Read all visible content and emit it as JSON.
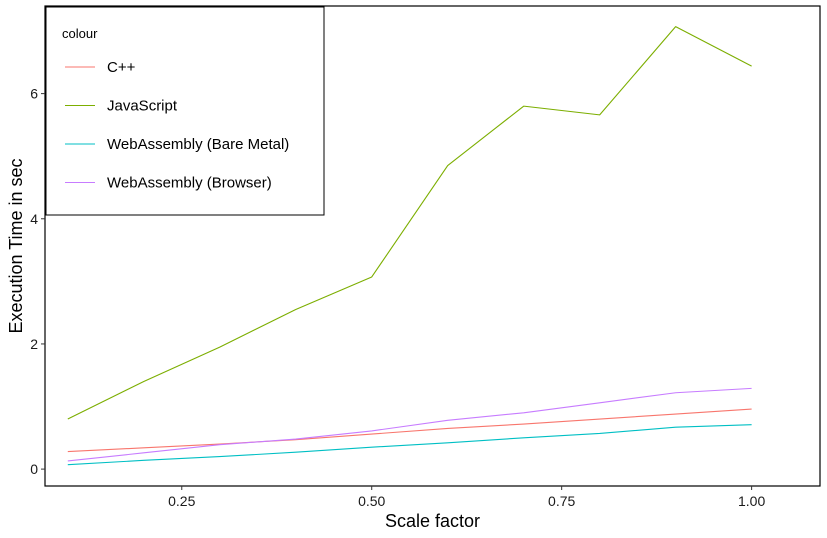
{
  "chart_data": {
    "type": "line",
    "xlabel": "Scale factor",
    "ylabel": "Execution Time in sec",
    "xlim": [
      0.07,
      1.09
    ],
    "ylim": [
      -0.27,
      7.4
    ],
    "xticks": [
      0.25,
      0.5,
      0.75,
      1.0
    ],
    "xtick_labels": [
      "0.25",
      "0.50",
      "0.75",
      "1.00"
    ],
    "yticks": [
      0,
      2,
      4,
      6
    ],
    "ytick_labels": [
      "0",
      "2",
      "4",
      "6"
    ],
    "grid": false,
    "legend": {
      "title": "colour",
      "position": "top-left"
    },
    "x": [
      0.1,
      0.2,
      0.3,
      0.4,
      0.5,
      0.6,
      0.7,
      0.8,
      0.9,
      1.0
    ],
    "series": [
      {
        "name": "C++",
        "color": "#F8766D",
        "values": [
          0.28,
          0.34,
          0.4,
          0.47,
          0.56,
          0.65,
          0.72,
          0.8,
          0.88,
          0.96
        ]
      },
      {
        "name": "JavaScript",
        "color": "#7CAE00",
        "values": [
          0.8,
          1.4,
          1.95,
          2.55,
          3.07,
          4.85,
          5.8,
          5.66,
          7.07,
          6.44
        ]
      },
      {
        "name": "WebAssembly (Bare Metal)",
        "color": "#00BFC4",
        "values": [
          0.07,
          0.14,
          0.2,
          0.27,
          0.35,
          0.42,
          0.5,
          0.57,
          0.67,
          0.71
        ]
      },
      {
        "name": "WebAssembly (Browser)",
        "color": "#C77CFF",
        "values": [
          0.13,
          0.26,
          0.39,
          0.48,
          0.61,
          0.78,
          0.9,
          1.06,
          1.22,
          1.29
        ]
      }
    ]
  }
}
